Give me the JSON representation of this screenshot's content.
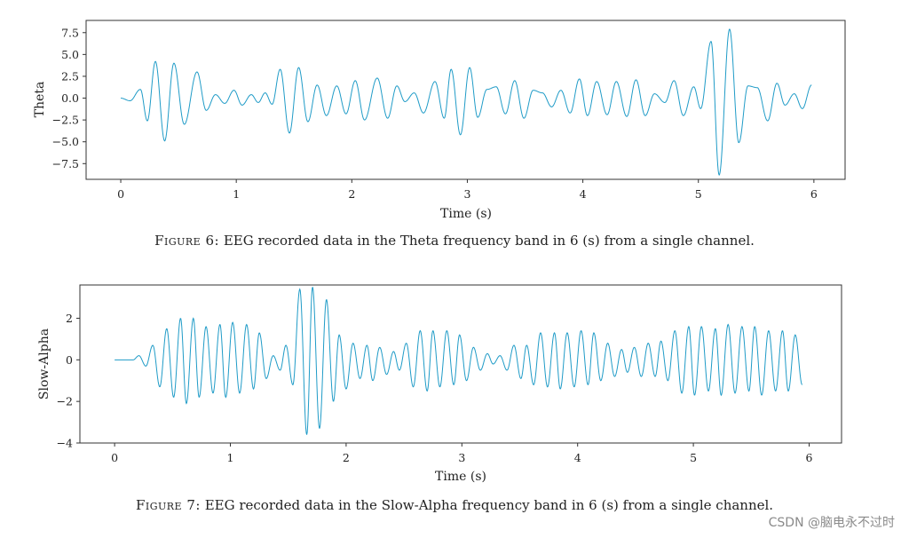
{
  "chart_data": [
    {
      "type": "line",
      "ylabel": "Theta",
      "xlabel": "Time (s)",
      "xlim": [
        -0.3,
        6.27
      ],
      "ylim": [
        -9.3,
        8.9
      ],
      "xticks": [
        0,
        1,
        2,
        3,
        4,
        5,
        6
      ],
      "yticks": [
        -7.5,
        -5.0,
        -2.5,
        0.0,
        2.5,
        5.0,
        7.5
      ],
      "ytick_labels": [
        "−7.5",
        "−5.0",
        "−2.5",
        "0.0",
        "2.5",
        "5.0",
        "7.5"
      ],
      "color": "#1f9bc7",
      "freq_hz": 6.0,
      "peaks": [
        [
          0.0,
          0.0
        ],
        [
          0.08,
          -0.3
        ],
        [
          0.17,
          1.0
        ],
        [
          0.23,
          -2.6
        ],
        [
          0.3,
          4.2
        ],
        [
          0.38,
          -4.9
        ],
        [
          0.46,
          4.0
        ],
        [
          0.55,
          -3.0
        ],
        [
          0.66,
          3.0
        ],
        [
          0.74,
          -1.4
        ],
        [
          0.82,
          0.4
        ],
        [
          0.9,
          -0.6
        ],
        [
          0.98,
          0.9
        ],
        [
          1.05,
          -0.8
        ],
        [
          1.13,
          0.4
        ],
        [
          1.19,
          -0.5
        ],
        [
          1.25,
          0.6
        ],
        [
          1.31,
          -0.7
        ],
        [
          1.38,
          3.3
        ],
        [
          1.46,
          -4.0
        ],
        [
          1.54,
          3.5
        ],
        [
          1.62,
          -2.7
        ],
        [
          1.7,
          1.5
        ],
        [
          1.78,
          -2.0
        ],
        [
          1.87,
          1.4
        ],
        [
          1.95,
          -1.8
        ],
        [
          2.03,
          2.0
        ],
        [
          2.11,
          -2.5
        ],
        [
          2.22,
          2.3
        ],
        [
          2.31,
          -2.3
        ],
        [
          2.39,
          1.4
        ],
        [
          2.46,
          -0.4
        ],
        [
          2.54,
          0.6
        ],
        [
          2.62,
          -1.7
        ],
        [
          2.72,
          1.9
        ],
        [
          2.8,
          -2.3
        ],
        [
          2.86,
          3.3
        ],
        [
          2.94,
          -4.2
        ],
        [
          3.02,
          3.5
        ],
        [
          3.09,
          -2.2
        ],
        [
          3.17,
          1.0
        ],
        [
          3.25,
          1.3
        ],
        [
          3.33,
          -1.8
        ],
        [
          3.41,
          2.0
        ],
        [
          3.49,
          -2.3
        ],
        [
          3.57,
          0.9
        ],
        [
          3.65,
          0.6
        ],
        [
          3.73,
          -1.0
        ],
        [
          3.81,
          0.9
        ],
        [
          3.89,
          -1.7
        ],
        [
          3.97,
          2.2
        ],
        [
          4.04,
          -2.0
        ],
        [
          4.12,
          1.9
        ],
        [
          4.21,
          -1.9
        ],
        [
          4.29,
          1.9
        ],
        [
          4.38,
          -2.1
        ],
        [
          4.46,
          2.1
        ],
        [
          4.54,
          -2.0
        ],
        [
          4.62,
          0.5
        ],
        [
          4.71,
          -0.5
        ],
        [
          4.79,
          2.0
        ],
        [
          4.87,
          -2.0
        ],
        [
          4.96,
          1.3
        ],
        [
          5.02,
          -1.2
        ],
        [
          5.11,
          6.5
        ],
        [
          5.18,
          -8.8
        ],
        [
          5.27,
          7.9
        ],
        [
          5.35,
          -5.1
        ],
        [
          5.43,
          1.4
        ],
        [
          5.51,
          1.2
        ],
        [
          5.6,
          -2.6
        ],
        [
          5.68,
          1.7
        ],
        [
          5.75,
          -0.8
        ],
        [
          5.83,
          0.5
        ],
        [
          5.9,
          -1.2
        ],
        [
          5.98,
          1.5
        ]
      ]
    },
    {
      "type": "line",
      "ylabel": "Slow-Alpha",
      "xlabel": "Time (s)",
      "xlim": [
        -0.3,
        6.28
      ],
      "ylim": [
        -4.0,
        3.6
      ],
      "xticks": [
        0,
        1,
        2,
        3,
        4,
        5,
        6
      ],
      "yticks": [
        -4,
        -2,
        0,
        2
      ],
      "ytick_labels": [
        "−4",
        "−2",
        "0",
        "2"
      ],
      "color": "#1f9bc7",
      "freq_hz": 8.75,
      "peaks": [
        [
          0.0,
          0.0
        ],
        [
          0.16,
          0.0
        ],
        [
          0.21,
          0.2
        ],
        [
          0.27,
          -0.3
        ],
        [
          0.33,
          0.7
        ],
        [
          0.39,
          -1.3
        ],
        [
          0.45,
          1.5
        ],
        [
          0.51,
          -1.8
        ],
        [
          0.57,
          2.0
        ],
        [
          0.62,
          -2.1
        ],
        [
          0.68,
          2.0
        ],
        [
          0.73,
          -1.8
        ],
        [
          0.79,
          1.6
        ],
        [
          0.85,
          -1.6
        ],
        [
          0.91,
          1.7
        ],
        [
          0.96,
          -1.8
        ],
        [
          1.02,
          1.8
        ],
        [
          1.08,
          -1.6
        ],
        [
          1.14,
          1.7
        ],
        [
          1.2,
          -1.4
        ],
        [
          1.25,
          1.3
        ],
        [
          1.31,
          -0.9
        ],
        [
          1.37,
          0.2
        ],
        [
          1.43,
          -0.5
        ],
        [
          1.48,
          0.7
        ],
        [
          1.54,
          -1.2
        ],
        [
          1.6,
          3.4
        ],
        [
          1.66,
          -3.6
        ],
        [
          1.71,
          3.5
        ],
        [
          1.77,
          -3.3
        ],
        [
          1.83,
          2.9
        ],
        [
          1.89,
          -2.0
        ],
        [
          1.94,
          1.2
        ],
        [
          2.0,
          -1.4
        ],
        [
          2.06,
          0.8
        ],
        [
          2.12,
          -0.9
        ],
        [
          2.18,
          0.7
        ],
        [
          2.23,
          -1.0
        ],
        [
          2.29,
          0.6
        ],
        [
          2.35,
          -0.7
        ],
        [
          2.41,
          0.4
        ],
        [
          2.46,
          -0.5
        ],
        [
          2.52,
          0.8
        ],
        [
          2.58,
          -1.3
        ],
        [
          2.64,
          1.4
        ],
        [
          2.7,
          -1.5
        ],
        [
          2.75,
          1.4
        ],
        [
          2.81,
          -1.3
        ],
        [
          2.87,
          1.4
        ],
        [
          2.93,
          -1.2
        ],
        [
          2.98,
          1.2
        ],
        [
          3.04,
          -1.0
        ],
        [
          3.1,
          0.6
        ],
        [
          3.16,
          -0.5
        ],
        [
          3.22,
          0.3
        ],
        [
          3.27,
          -0.2
        ],
        [
          3.33,
          0.2
        ],
        [
          3.39,
          -0.5
        ],
        [
          3.45,
          0.7
        ],
        [
          3.51,
          -0.9
        ],
        [
          3.56,
          0.7
        ],
        [
          3.62,
          -1.2
        ],
        [
          3.68,
          1.3
        ],
        [
          3.74,
          -1.3
        ],
        [
          3.8,
          1.3
        ],
        [
          3.85,
          -1.4
        ],
        [
          3.91,
          1.3
        ],
        [
          3.97,
          -1.3
        ],
        [
          4.03,
          1.4
        ],
        [
          4.09,
          -1.2
        ],
        [
          4.14,
          1.3
        ],
        [
          4.2,
          -1.0
        ],
        [
          4.26,
          0.8
        ],
        [
          4.32,
          -0.8
        ],
        [
          4.38,
          0.5
        ],
        [
          4.43,
          -0.6
        ],
        [
          4.49,
          0.6
        ],
        [
          4.55,
          -0.8
        ],
        [
          4.61,
          0.8
        ],
        [
          4.67,
          -0.8
        ],
        [
          4.72,
          0.9
        ],
        [
          4.78,
          -1.0
        ],
        [
          4.84,
          1.4
        ],
        [
          4.9,
          -1.6
        ],
        [
          4.96,
          1.6
        ],
        [
          5.01,
          -1.7
        ],
        [
          5.07,
          1.6
        ],
        [
          5.13,
          -1.5
        ],
        [
          5.19,
          1.5
        ],
        [
          5.24,
          -1.7
        ],
        [
          5.3,
          1.7
        ],
        [
          5.36,
          -1.6
        ],
        [
          5.42,
          1.6
        ],
        [
          5.48,
          -1.5
        ],
        [
          5.53,
          1.6
        ],
        [
          5.59,
          -1.7
        ],
        [
          5.65,
          1.4
        ],
        [
          5.71,
          -1.5
        ],
        [
          5.77,
          1.4
        ],
        [
          5.82,
          -1.5
        ],
        [
          5.88,
          1.2
        ],
        [
          5.94,
          -1.2
        ]
      ]
    }
  ],
  "captions": [
    {
      "label": "Figure 6:",
      "text": " EEG recorded data in the Theta frequency band in 6 (s) from a single channel."
    },
    {
      "label": "Figure 7:",
      "text": " EEG recorded data in the Slow-Alpha frequency band in 6 (s) from a single channel."
    }
  ],
  "watermark": "CSDN @脑电永不过时"
}
